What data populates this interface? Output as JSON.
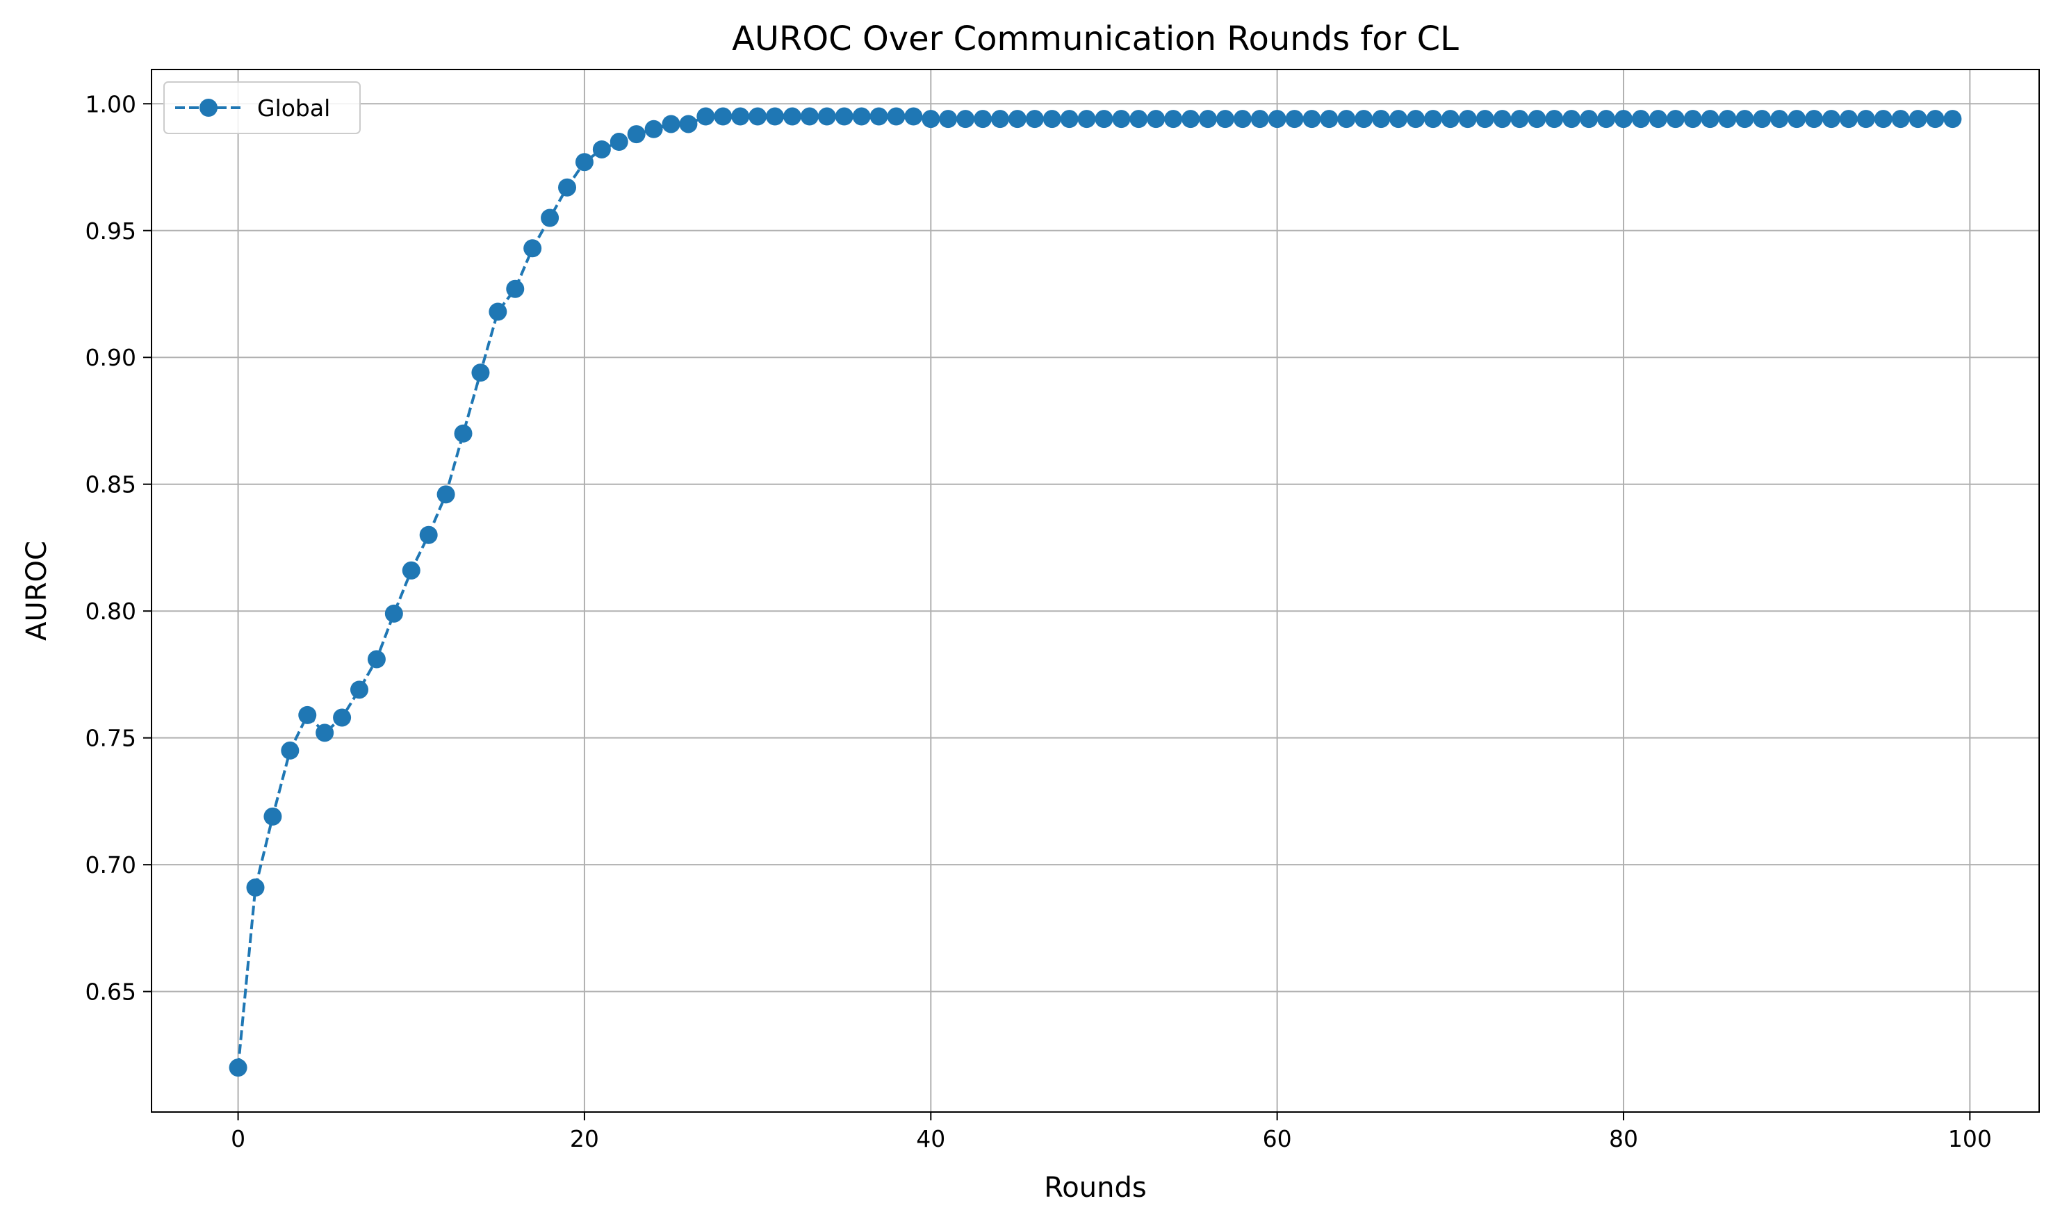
{
  "chart_data": {
    "type": "line",
    "title": "AUROC Over Communication Rounds for CL",
    "xlabel": "Rounds",
    "ylabel": "AUROC",
    "xlim": [
      -5,
      104
    ],
    "ylim": [
      0.6025,
      1.0135
    ],
    "xticks": [
      0,
      20,
      40,
      60,
      80,
      100
    ],
    "xtick_labels": [
      "0",
      "20",
      "40",
      "60",
      "80",
      "100"
    ],
    "yticks": [
      0.65,
      0.7,
      0.75,
      0.8,
      0.85,
      0.9,
      0.95,
      1.0
    ],
    "ytick_labels": [
      "0.65",
      "0.70",
      "0.75",
      "0.80",
      "0.85",
      "0.90",
      "0.95",
      "1.00"
    ],
    "grid": true,
    "legend_position": "top-left",
    "series": [
      {
        "name": "Global",
        "color": "#1f77b4",
        "line_style": "dashed",
        "marker": "circle",
        "x": [
          0,
          1,
          2,
          3,
          4,
          5,
          6,
          7,
          8,
          9,
          10,
          11,
          12,
          13,
          14,
          15,
          16,
          17,
          18,
          19,
          20,
          21,
          22,
          23,
          24,
          25,
          26,
          27,
          28,
          29,
          30,
          31,
          32,
          33,
          34,
          35,
          36,
          37,
          38,
          39,
          40,
          41,
          42,
          43,
          44,
          45,
          46,
          47,
          48,
          49,
          50,
          51,
          52,
          53,
          54,
          55,
          56,
          57,
          58,
          59,
          60,
          61,
          62,
          63,
          64,
          65,
          66,
          67,
          68,
          69,
          70,
          71,
          72,
          73,
          74,
          75,
          76,
          77,
          78,
          79,
          80,
          81,
          82,
          83,
          84,
          85,
          86,
          87,
          88,
          89,
          90,
          91,
          92,
          93,
          94,
          95,
          96,
          97,
          98,
          99
        ],
        "values": [
          0.62,
          0.691,
          0.719,
          0.745,
          0.759,
          0.752,
          0.758,
          0.769,
          0.781,
          0.799,
          0.816,
          0.83,
          0.846,
          0.87,
          0.894,
          0.918,
          0.927,
          0.943,
          0.955,
          0.967,
          0.977,
          0.982,
          0.985,
          0.988,
          0.99,
          0.992,
          0.992,
          0.995,
          0.995,
          0.995,
          0.995,
          0.995,
          0.995,
          0.995,
          0.995,
          0.995,
          0.995,
          0.995,
          0.995,
          0.995,
          0.994,
          0.994,
          0.994,
          0.994,
          0.994,
          0.994,
          0.994,
          0.994,
          0.994,
          0.994,
          0.994,
          0.994,
          0.994,
          0.994,
          0.994,
          0.994,
          0.994,
          0.994,
          0.994,
          0.994,
          0.994,
          0.994,
          0.994,
          0.994,
          0.994,
          0.994,
          0.994,
          0.994,
          0.994,
          0.994,
          0.994,
          0.994,
          0.994,
          0.994,
          0.994,
          0.994,
          0.994,
          0.994,
          0.994,
          0.994,
          0.994,
          0.994,
          0.994,
          0.994,
          0.994,
          0.994,
          0.994,
          0.994,
          0.994,
          0.994,
          0.994,
          0.994,
          0.994,
          0.994,
          0.994,
          0.994,
          0.994,
          0.994,
          0.994,
          0.994
        ]
      }
    ]
  }
}
